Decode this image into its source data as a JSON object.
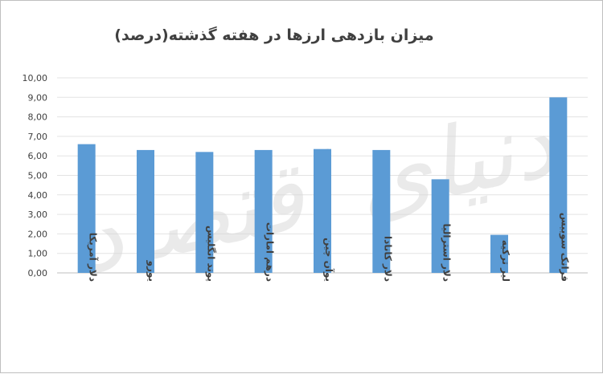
{
  "watermark": "دنیای اقتصاد",
  "chart_data": {
    "type": "bar",
    "title": "میزان بازدهی ارزها در هفته گذشته(درصد)",
    "xlabel": "",
    "ylabel": "",
    "ylim": [
      0,
      10
    ],
    "yticks": [
      0,
      1,
      2,
      3,
      4,
      5,
      6,
      7,
      8,
      9,
      10
    ],
    "ytick_labels": [
      "0,00",
      "1,00",
      "2,00",
      "3,00",
      "4,00",
      "5,00",
      "6,00",
      "7,00",
      "8,00",
      "9,00",
      "10,00"
    ],
    "categories": [
      "دلار آمریکا",
      "یورو",
      "پوند انگلیس",
      "درهم امارات",
      "یوآن چین",
      "دلار کانادا",
      "دلار استرالیا",
      "لیر ترکیه",
      "فرانک سوییس"
    ],
    "values": [
      6.6,
      6.3,
      6.2,
      6.3,
      6.35,
      6.3,
      4.8,
      1.95,
      9.0
    ],
    "bar_color": "#5b9bd5",
    "grid": true,
    "legend": "none"
  }
}
